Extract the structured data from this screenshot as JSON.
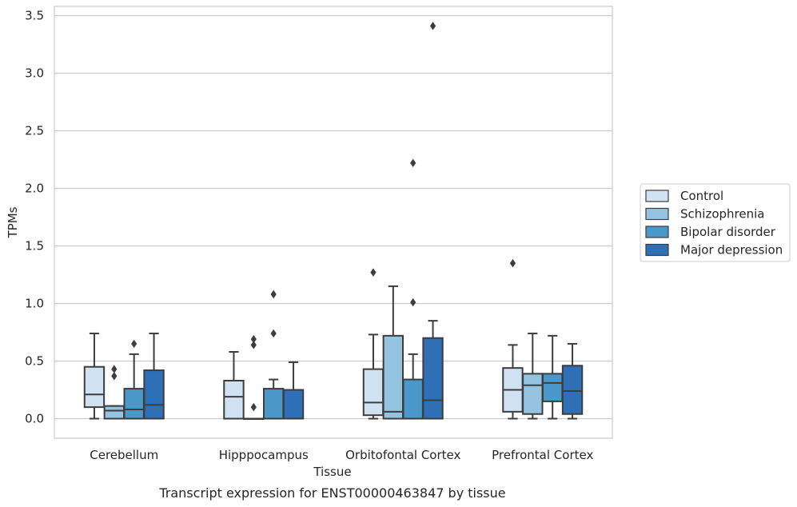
{
  "chart_data": {
    "type": "box",
    "xlabel": "Tissue",
    "ylabel": "TPMs",
    "caption": "Transcript expression for ENST00000463847 by tissue",
    "ylim": [
      -0.17,
      3.58
    ],
    "yticks": [
      0.0,
      0.5,
      1.0,
      1.5,
      2.0,
      2.5,
      3.0,
      3.5
    ],
    "ytick_labels": [
      "0.0",
      "0.5",
      "1.0",
      "1.5",
      "2.0",
      "2.5",
      "3.0",
      "3.5"
    ],
    "grid": "horizontal",
    "legend_position": "right",
    "categories": [
      "Cerebellum",
      "Hipppocampus",
      "Orbitofontal Cortex",
      "Prefrontal Cortex"
    ],
    "series": [
      {
        "name": "Control",
        "color": "#d0e1f2",
        "boxes": [
          {
            "whislo": 0.0,
            "q1": 0.1,
            "med": 0.21,
            "q3": 0.45,
            "whishi": 0.74,
            "fliers": []
          },
          {
            "whislo": 0.0,
            "q1": 0.0,
            "med": 0.19,
            "q3": 0.33,
            "whishi": 0.58,
            "fliers": []
          },
          {
            "whislo": 0.0,
            "q1": 0.03,
            "med": 0.14,
            "q3": 0.43,
            "whishi": 0.73,
            "fliers": [
              1.27
            ]
          },
          {
            "whislo": 0.0,
            "q1": 0.06,
            "med": 0.25,
            "q3": 0.44,
            "whishi": 0.64,
            "fliers": [
              1.35
            ]
          }
        ]
      },
      {
        "name": "Schizophrenia",
        "color": "#94c4df",
        "boxes": [
          {
            "whislo": 0.0,
            "q1": 0.0,
            "med": 0.07,
            "q3": 0.11,
            "whishi": 0.11,
            "fliers": [
              0.37,
              0.43
            ]
          },
          {
            "whislo": 0.0,
            "q1": 0.0,
            "med": 0.0,
            "q3": 0.0,
            "whishi": 0.0,
            "fliers": [
              0.1,
              0.64,
              0.69
            ]
          },
          {
            "whislo": 0.0,
            "q1": 0.0,
            "med": 0.06,
            "q3": 0.72,
            "whishi": 1.15,
            "fliers": []
          },
          {
            "whislo": 0.0,
            "q1": 0.04,
            "med": 0.29,
            "q3": 0.39,
            "whishi": 0.74,
            "fliers": []
          }
        ]
      },
      {
        "name": "Bipolar disorder",
        "color": "#4a98c9",
        "boxes": [
          {
            "whislo": 0.0,
            "q1": 0.0,
            "med": 0.08,
            "q3": 0.26,
            "whishi": 0.56,
            "fliers": [
              0.65
            ]
          },
          {
            "whislo": 0.0,
            "q1": 0.0,
            "med": 0.0,
            "q3": 0.26,
            "whishi": 0.34,
            "fliers": [
              0.74,
              1.08
            ]
          },
          {
            "whislo": 0.0,
            "q1": 0.0,
            "med": 0.0,
            "q3": 0.34,
            "whishi": 0.56,
            "fliers": [
              1.01,
              2.22
            ]
          },
          {
            "whislo": 0.0,
            "q1": 0.15,
            "med": 0.31,
            "q3": 0.39,
            "whishi": 0.72,
            "fliers": []
          }
        ]
      },
      {
        "name": "Major depression",
        "color": "#2e6fb5",
        "boxes": [
          {
            "whislo": 0.0,
            "q1": 0.0,
            "med": 0.12,
            "q3": 0.42,
            "whishi": 0.74,
            "fliers": []
          },
          {
            "whislo": 0.0,
            "q1": 0.0,
            "med": 0.0,
            "q3": 0.25,
            "whishi": 0.49,
            "fliers": []
          },
          {
            "whislo": 0.0,
            "q1": 0.0,
            "med": 0.16,
            "q3": 0.7,
            "whishi": 0.85,
            "fliers": [
              3.41
            ]
          },
          {
            "whislo": 0.0,
            "q1": 0.04,
            "med": 0.24,
            "q3": 0.46,
            "whishi": 0.65,
            "fliers": []
          }
        ]
      }
    ]
  }
}
